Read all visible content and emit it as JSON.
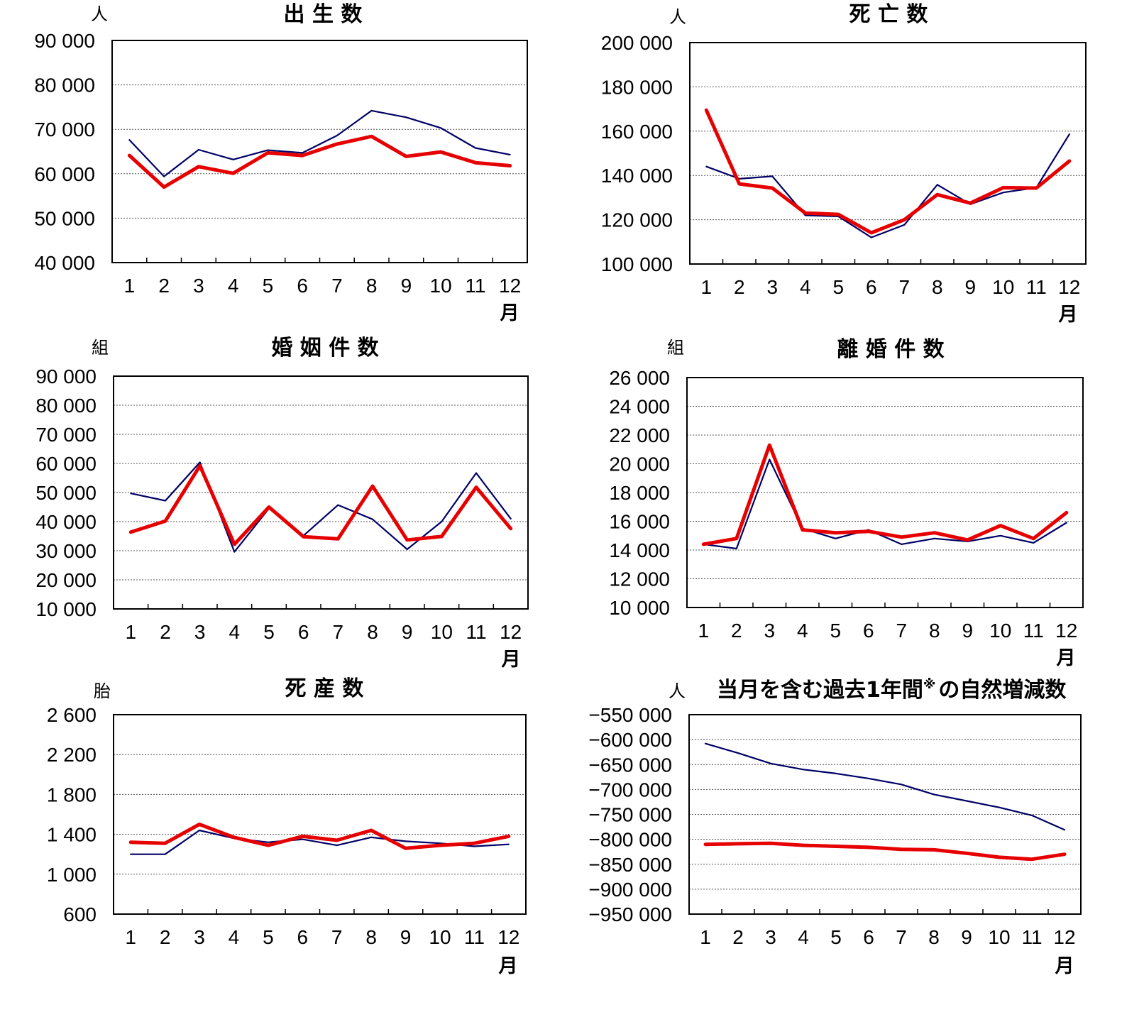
{
  "chart_data": [
    {
      "type": "line",
      "title": "出 生 数",
      "unit": "人",
      "xlabel": "月",
      "categories": [
        "1",
        "2",
        "3",
        "4",
        "5",
        "6",
        "7",
        "8",
        "9",
        "10",
        "11",
        "12"
      ],
      "ylim": [
        40000,
        90000
      ],
      "yticks": [
        40000,
        50000,
        60000,
        70000,
        80000,
        90000
      ],
      "ytick_labels": [
        "40 000",
        "50 000",
        "60 000",
        "70 000",
        "80 000",
        "90 000"
      ],
      "grid": true,
      "series": [
        {
          "color": "#000066",
          "values": [
            67600,
            59400,
            65400,
            63200,
            65300,
            64700,
            68600,
            74200,
            72700,
            70300,
            65800,
            64300
          ]
        },
        {
          "color": "#e60000",
          "values": [
            64100,
            57000,
            61600,
            60100,
            64700,
            64100,
            66700,
            68400,
            63900,
            64900,
            62500,
            61800
          ]
        }
      ]
    },
    {
      "type": "line",
      "title": "死 亡 数",
      "unit": "人",
      "xlabel": "月",
      "categories": [
        "1",
        "2",
        "3",
        "4",
        "5",
        "6",
        "7",
        "8",
        "9",
        "10",
        "11",
        "12"
      ],
      "ylim": [
        100000,
        200000
      ],
      "yticks": [
        100000,
        120000,
        140000,
        160000,
        180000,
        200000
      ],
      "ytick_labels": [
        "100 000",
        "120 000",
        "140 000",
        "160 000",
        "180 000",
        "200 000"
      ],
      "grid": true,
      "series": [
        {
          "color": "#000066",
          "values": [
            144000,
            138500,
            139600,
            122000,
            121500,
            112000,
            117700,
            135800,
            127000,
            132300,
            134500,
            158600
          ]
        },
        {
          "color": "#e60000",
          "values": [
            169500,
            136200,
            134300,
            123000,
            122400,
            114100,
            120000,
            131300,
            127500,
            134500,
            134300,
            146500
          ]
        }
      ]
    },
    {
      "type": "line",
      "title": "婚 姻 件 数",
      "unit": "組",
      "xlabel": "月",
      "categories": [
        "1",
        "2",
        "3",
        "4",
        "5",
        "6",
        "7",
        "8",
        "9",
        "10",
        "11",
        "12"
      ],
      "ylim": [
        10000,
        90000
      ],
      "yticks": [
        10000,
        20000,
        30000,
        40000,
        50000,
        60000,
        70000,
        80000,
        90000
      ],
      "ytick_labels": [
        "10 000",
        "20 000",
        "30 000",
        "40 000",
        "50 000",
        "60 000",
        "70 000",
        "80 000",
        "90 000"
      ],
      "grid": true,
      "series": [
        {
          "color": "#000066",
          "values": [
            49700,
            47200,
            60400,
            29600,
            44500,
            35200,
            45700,
            40800,
            30500,
            40000,
            56700,
            41000
          ]
        },
        {
          "color": "#e60000",
          "values": [
            36400,
            40200,
            59200,
            32200,
            45000,
            34800,
            34100,
            52200,
            33700,
            34900,
            51800,
            37600
          ]
        }
      ]
    },
    {
      "type": "line",
      "title": "離 婚 件 数",
      "unit": "組",
      "xlabel": "月",
      "categories": [
        "1",
        "2",
        "3",
        "4",
        "5",
        "6",
        "7",
        "8",
        "9",
        "10",
        "11",
        "12"
      ],
      "ylim": [
        10000,
        26000
      ],
      "yticks": [
        10000,
        12000,
        14000,
        16000,
        18000,
        20000,
        22000,
        24000,
        26000
      ],
      "ytick_labels": [
        "10 000",
        "12 000",
        "14 000",
        "16 000",
        "18 000",
        "20 000",
        "22 000",
        "24 000",
        "26 000"
      ],
      "grid": true,
      "series": [
        {
          "color": "#000066",
          "values": [
            14400,
            14100,
            20300,
            15500,
            14800,
            15400,
            14400,
            14800,
            14600,
            15000,
            14500,
            15900
          ]
        },
        {
          "color": "#e60000",
          "values": [
            14400,
            14800,
            21300,
            15400,
            15200,
            15300,
            14900,
            15200,
            14700,
            15700,
            14800,
            16600
          ]
        }
      ]
    },
    {
      "type": "line",
      "title": "死 産 数",
      "unit": "胎",
      "xlabel": "月",
      "categories": [
        "1",
        "2",
        "3",
        "4",
        "5",
        "6",
        "7",
        "8",
        "9",
        "10",
        "11",
        "12"
      ],
      "ylim": [
        600,
        2600
      ],
      "yticks": [
        600,
        1000,
        1400,
        1800,
        2200,
        2600
      ],
      "ytick_labels": [
        "600",
        "1 000",
        "1 400",
        "1 800",
        "2 200",
        "2 600"
      ],
      "grid": true,
      "series": [
        {
          "color": "#000066",
          "values": [
            1200,
            1200,
            1440,
            1360,
            1320,
            1350,
            1290,
            1370,
            1330,
            1310,
            1280,
            1300
          ]
        },
        {
          "color": "#e60000",
          "values": [
            1320,
            1310,
            1500,
            1370,
            1290,
            1380,
            1340,
            1440,
            1260,
            1290,
            1310,
            1380
          ]
        }
      ]
    },
    {
      "type": "line",
      "title": "当月を含む過去1年間",
      "title_mark": "※",
      "title_suffix": "の自然増減数",
      "unit": "人",
      "xlabel": "月",
      "categories": [
        "1",
        "2",
        "3",
        "4",
        "5",
        "6",
        "7",
        "8",
        "9",
        "10",
        "11",
        "12"
      ],
      "ylim": [
        -950000,
        -550000
      ],
      "yticks": [
        -950000,
        -900000,
        -850000,
        -800000,
        -750000,
        -700000,
        -650000,
        -600000,
        -550000
      ],
      "ytick_labels": [
        "−950 000",
        "−900 000",
        "−850 000",
        "−800 000",
        "−750 000",
        "−700 000",
        "−650 000",
        "−600 000",
        "−550 000"
      ],
      "grid": true,
      "series": [
        {
          "color": "#000066",
          "values": [
            -608000,
            -627000,
            -648000,
            -660000,
            -668000,
            -678000,
            -690000,
            -710000,
            -723000,
            -736000,
            -752000,
            -781000
          ]
        },
        {
          "color": "#e60000",
          "values": [
            -810000,
            -809000,
            -808000,
            -812000,
            -814000,
            -816000,
            -820000,
            -821000,
            -828000,
            -836000,
            -840000,
            -830000
          ]
        }
      ]
    }
  ]
}
